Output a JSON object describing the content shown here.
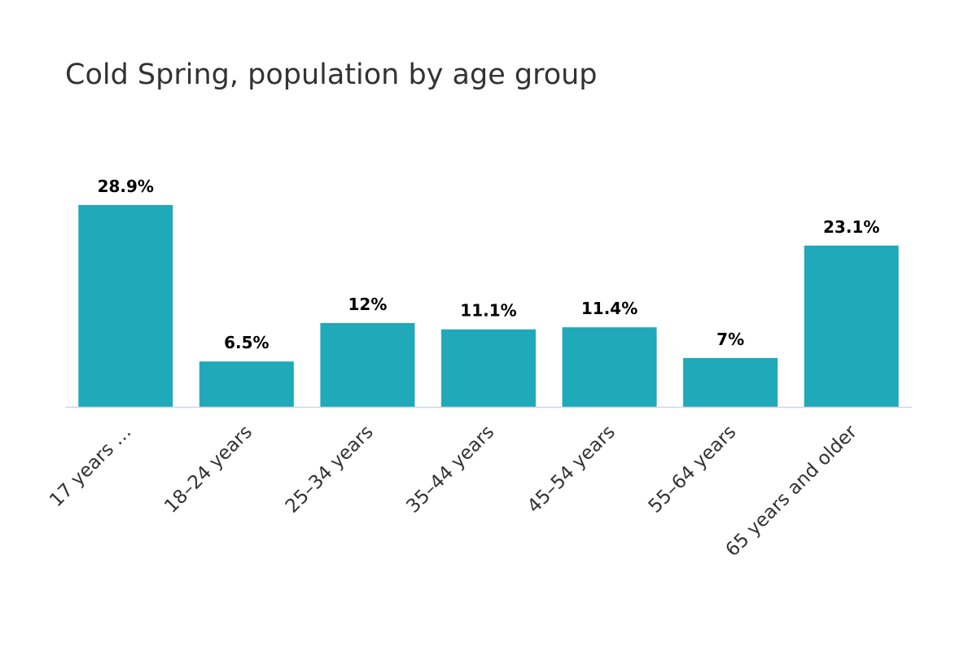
{
  "chart_data": {
    "type": "bar",
    "title": "Cold Spring, population by age group",
    "categories": [
      "17 years …",
      "18–24 years",
      "25–34 years",
      "35–44 years",
      "45–54 years",
      "55–64 years",
      "65 years and older"
    ],
    "values": [
      28.9,
      6.5,
      12,
      11.1,
      11.4,
      7,
      23.1
    ],
    "data_labels": [
      "28.9%",
      "6.5%",
      "12%",
      "11.1%",
      "11.4%",
      "7%",
      "23.1%"
    ],
    "xlabel": "",
    "ylabel": "",
    "ylim": [
      0,
      30
    ],
    "grid": false,
    "legend": "none",
    "bar_color": "#1fa9b9",
    "axis_color": "#ccd6eb"
  }
}
